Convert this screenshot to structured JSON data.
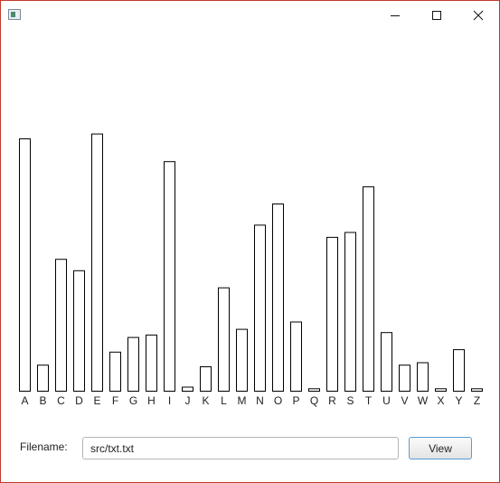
{
  "window": {
    "title": "",
    "accent_color": "#c0392b",
    "controls": {
      "minimize_icon": "minimize-icon",
      "maximize_icon": "maximize-icon",
      "close_icon": "close-icon"
    }
  },
  "chart_data": {
    "type": "bar",
    "title": "",
    "xlabel": "",
    "ylabel": "",
    "categories": [
      "A",
      "B",
      "C",
      "D",
      "E",
      "F",
      "G",
      "H",
      "I",
      "J",
      "K",
      "L",
      "M",
      "N",
      "O",
      "P",
      "Q",
      "R",
      "S",
      "T",
      "U",
      "V",
      "W",
      "X",
      "Y",
      "Z"
    ],
    "values": [
      62.0,
      6.4,
      32.4,
      29.6,
      63.2,
      9.6,
      13.2,
      13.8,
      56.4,
      1.0,
      6.0,
      25.4,
      15.2,
      40.8,
      46.0,
      17.0,
      0.6,
      37.8,
      39.0,
      50.2,
      14.4,
      6.4,
      7.0,
      0.6,
      10.2,
      0.6
    ],
    "ylim": [
      0,
      70
    ],
    "grid": false,
    "bar_fill": "#ffffff",
    "bar_stroke": "#000000"
  },
  "form": {
    "filename_label": "Filename:",
    "filename_value": "src/txt.txt",
    "view_button_label": "View"
  }
}
